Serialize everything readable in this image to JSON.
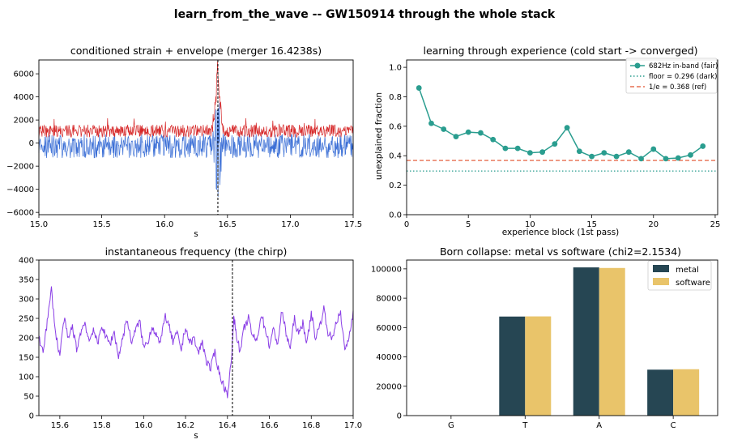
{
  "figure": {
    "title": "learn_from_the_wave -- GW150914 through the whole stack"
  },
  "colors": {
    "envelope": "#d62728",
    "strain": "#3b6fd6",
    "chirp": "#8a3ee6",
    "teal": "#2a9d8f",
    "ref": "#e76f51",
    "metal": "#264653",
    "software": "#e9c46a"
  },
  "chart_data": [
    {
      "type": "line",
      "title": "conditioned strain + envelope (merger 16.4238s)",
      "xlabel": "s",
      "ylabel": "",
      "xlim": [
        15.0,
        17.5
      ],
      "ylim": [
        -6200,
        7200
      ],
      "xticks": [
        15.0,
        15.5,
        16.0,
        16.5,
        17.0,
        17.5
      ],
      "xtick_labels": [
        "15.0",
        "15.5",
        "16.0",
        "16.5",
        "17.0",
        "17.5"
      ],
      "yticks": [
        -6000,
        -4000,
        -2000,
        0,
        2000,
        4000,
        6000
      ],
      "ytick_labels": [
        "−6000",
        "−4000",
        "−2000",
        "0",
        "2000",
        "4000",
        "6000"
      ],
      "merger_time": 16.4238,
      "series": [
        {
          "kind": "envelope",
          "color": "#d62728",
          "description_values": "noisy positive envelope ~600-1600, spikes to ~6800 at merger",
          "baseline": 1050,
          "spread": 1100,
          "peak": 6800
        },
        {
          "kind": "strain",
          "color": "#3b6fd6",
          "baseline": -250,
          "spread": 1300,
          "peak_low": -5900
        }
      ],
      "grid": false
    },
    {
      "type": "line",
      "title": "learning through experience (cold start -> converged)",
      "xlabel": "experience block (1st pass)",
      "ylabel": "unexplained fraction",
      "xlim": [
        0,
        25.2
      ],
      "ylim": [
        0.0,
        1.05
      ],
      "xticks": [
        0,
        5,
        10,
        15,
        20,
        25
      ],
      "xtick_labels": [
        "0",
        "5",
        "10",
        "15",
        "20",
        "25"
      ],
      "yticks": [
        0.0,
        0.2,
        0.4,
        0.6,
        0.8,
        1.0
      ],
      "ytick_labels": [
        "0.0",
        "0.2",
        "0.4",
        "0.6",
        "0.8",
        "1.0"
      ],
      "x": [
        1,
        2,
        3,
        4,
        5,
        6,
        7,
        8,
        9,
        10,
        11,
        12,
        13,
        14,
        15,
        16,
        17,
        18,
        19,
        20,
        21,
        22,
        23,
        24
      ],
      "series": [
        {
          "name": "682Hz in-band (fair)",
          "color": "#2a9d8f",
          "values": [
            0.86,
            0.62,
            0.58,
            0.53,
            0.56,
            0.555,
            0.51,
            0.45,
            0.45,
            0.42,
            0.425,
            0.48,
            0.59,
            0.43,
            0.395,
            0.42,
            0.395,
            0.425,
            0.38,
            0.445,
            0.38,
            0.385,
            0.405,
            0.465
          ]
        }
      ],
      "hlines": [
        {
          "name": "floor = 0.296 (dark)",
          "value": 0.296,
          "color": "#2a9d8f",
          "style": "dotted"
        },
        {
          "name": "1/e = 0.368 (ref)",
          "value": 0.368,
          "color": "#e76f51",
          "style": "dashed"
        }
      ],
      "legend": "top-right",
      "grid": false
    },
    {
      "type": "line",
      "title": "instantaneous frequency (the chirp)",
      "xlabel": "s",
      "ylabel": "",
      "xlim": [
        15.5,
        17.0
      ],
      "ylim": [
        0,
        400
      ],
      "xticks": [
        15.6,
        15.8,
        16.0,
        16.2,
        16.4,
        16.6,
        16.8,
        17.0
      ],
      "xtick_labels": [
        "15.6",
        "15.8",
        "16.0",
        "16.2",
        "16.4",
        "16.6",
        "16.8",
        "17.0"
      ],
      "yticks": [
        0,
        50,
        100,
        150,
        200,
        250,
        300,
        350,
        400
      ],
      "ytick_labels": [
        "0",
        "50",
        "100",
        "150",
        "200",
        "250",
        "300",
        "350",
        "400"
      ],
      "merger_time": 16.4238,
      "series": [
        {
          "color": "#8a3ee6",
          "x": [
            15.5,
            15.52,
            15.54,
            15.56,
            15.58,
            15.6,
            15.62,
            15.64,
            15.66,
            15.68,
            15.7,
            15.72,
            15.74,
            15.76,
            15.78,
            15.8,
            15.82,
            15.84,
            15.86,
            15.88,
            15.9,
            15.92,
            15.94,
            15.96,
            15.98,
            16.0,
            16.02,
            16.04,
            16.06,
            16.08,
            16.1,
            16.12,
            16.14,
            16.16,
            16.18,
            16.2,
            16.22,
            16.24,
            16.26,
            16.28,
            16.3,
            16.32,
            16.34,
            16.36,
            16.38,
            16.4,
            16.42,
            16.43,
            16.44,
            16.46,
            16.48,
            16.5,
            16.52,
            16.54,
            16.56,
            16.58,
            16.6,
            16.62,
            16.64,
            16.66,
            16.68,
            16.7,
            16.72,
            16.74,
            16.76,
            16.78,
            16.8,
            16.82,
            16.84,
            16.86,
            16.88,
            16.9,
            16.92,
            16.94,
            16.96,
            16.98,
            17.0
          ],
          "values": [
            195,
            170,
            240,
            325,
            210,
            155,
            250,
            195,
            230,
            170,
            215,
            240,
            190,
            225,
            180,
            235,
            200,
            185,
            215,
            150,
            200,
            250,
            190,
            215,
            245,
            175,
            190,
            230,
            210,
            180,
            260,
            230,
            190,
            210,
            170,
            230,
            185,
            200,
            160,
            190,
            140,
            120,
            165,
            110,
            80,
            55,
            145,
            255,
            220,
            160,
            225,
            250,
            205,
            190,
            260,
            225,
            180,
            220,
            185,
            270,
            210,
            175,
            250,
            205,
            240,
            185,
            265,
            200,
            230,
            275,
            215,
            195,
            245,
            260,
            170,
            200,
            270
          ]
        }
      ],
      "grid": false
    },
    {
      "type": "bar",
      "title": "Born collapse: metal vs software (chi2=2.1534)",
      "xlabel": "",
      "ylabel": "",
      "categories": [
        "G",
        "T",
        "A",
        "C"
      ],
      "ylim": [
        0,
        106000
      ],
      "yticks": [
        0,
        20000,
        40000,
        60000,
        80000,
        100000
      ],
      "ytick_labels": [
        "0",
        "20000",
        "40000",
        "60000",
        "80000",
        "100000"
      ],
      "series": [
        {
          "name": "metal",
          "color": "#264653",
          "values": [
            0,
            67500,
            101000,
            31300
          ]
        },
        {
          "name": "software",
          "color": "#e9c46a",
          "values": [
            0,
            67600,
            100600,
            31600
          ]
        }
      ],
      "legend": "top-right",
      "grid": false
    }
  ]
}
